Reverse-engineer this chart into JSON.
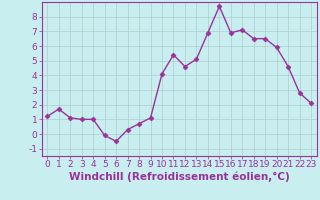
{
  "x": [
    0,
    1,
    2,
    3,
    4,
    5,
    6,
    7,
    8,
    9,
    10,
    11,
    12,
    13,
    14,
    15,
    16,
    17,
    18,
    19,
    20,
    21,
    22,
    23
  ],
  "y": [
    1.2,
    1.7,
    1.1,
    1.0,
    1.0,
    -0.1,
    -0.5,
    0.3,
    0.7,
    1.1,
    4.1,
    5.4,
    4.6,
    5.1,
    6.9,
    8.7,
    6.9,
    7.1,
    6.5,
    6.5,
    5.9,
    4.6,
    2.8,
    2.1
  ],
  "line_color": "#993399",
  "marker": "D",
  "marker_size": 2.5,
  "bg_color": "#c8eef0",
  "grid_color": "#b0cccc",
  "xlabel": "Windchill (Refroidissement éolien,°C)",
  "xlim": [
    -0.5,
    23.5
  ],
  "ylim": [
    -1.5,
    9.0
  ],
  "yticks": [
    -1,
    0,
    1,
    2,
    3,
    4,
    5,
    6,
    7,
    8
  ],
  "xticks": [
    0,
    1,
    2,
    3,
    4,
    5,
    6,
    7,
    8,
    9,
    10,
    11,
    12,
    13,
    14,
    15,
    16,
    17,
    18,
    19,
    20,
    21,
    22,
    23
  ],
  "tick_label_size": 6.5,
  "xlabel_size": 7.5,
  "line_width": 1.0
}
